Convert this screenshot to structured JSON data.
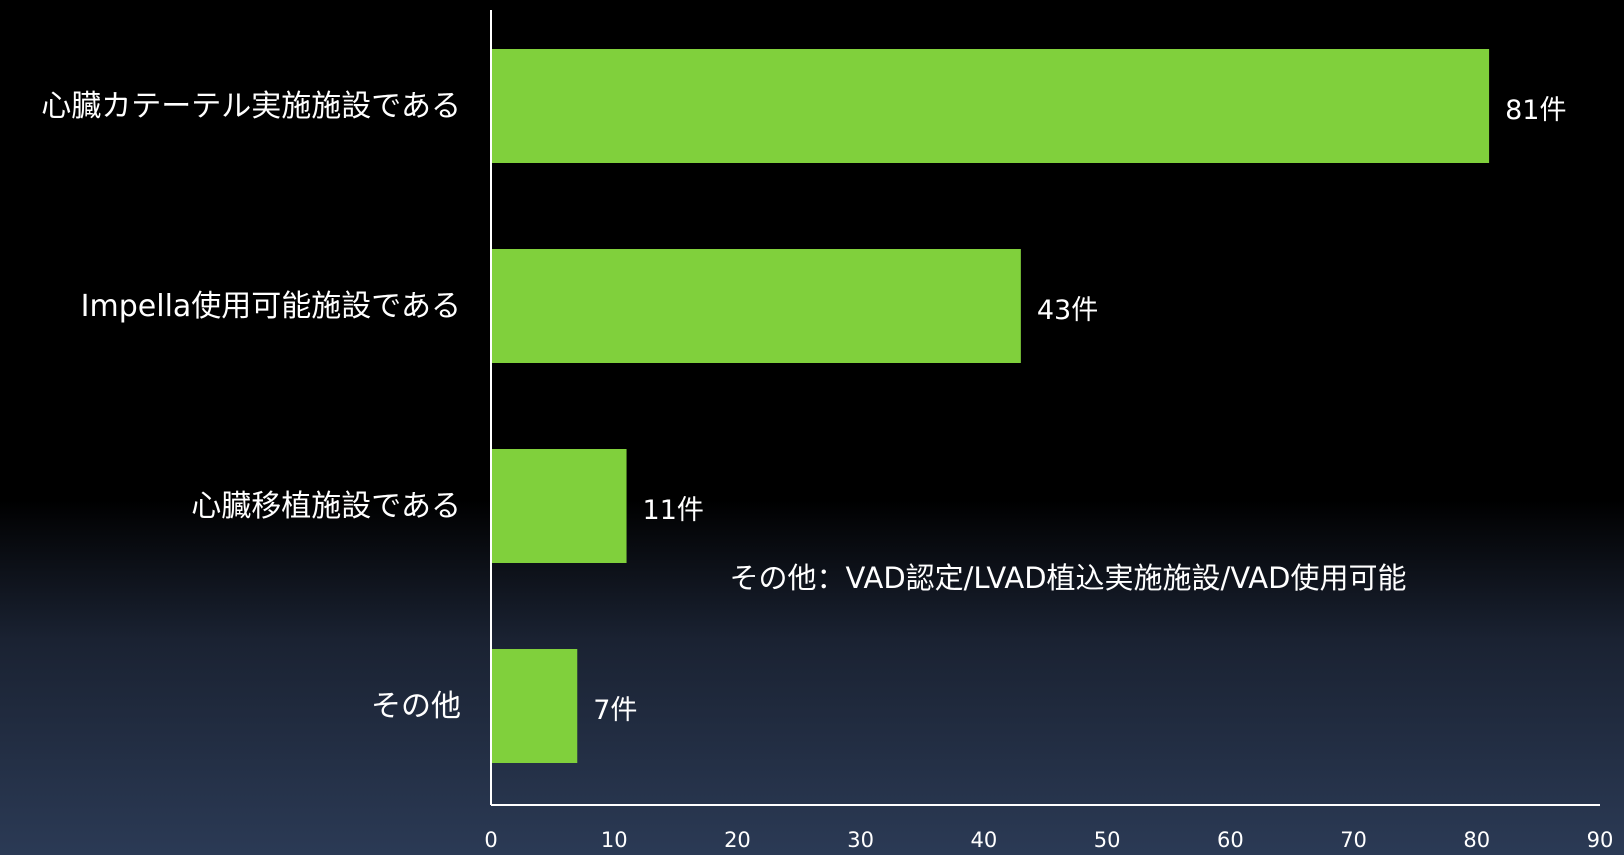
{
  "chart_data": {
    "type": "bar",
    "orientation": "horizontal",
    "categories": [
      "心臓カテーテル実施施設である",
      "Impella使用可能施設である",
      "心臓移植施設である",
      "その他"
    ],
    "values": [
      81,
      43,
      11,
      7
    ],
    "value_labels": [
      "81件",
      "43件",
      "11件",
      "7件"
    ],
    "xlim": [
      0,
      90
    ],
    "x_ticks": [
      0,
      10,
      20,
      30,
      40,
      50,
      60,
      70,
      80,
      90
    ],
    "title": "",
    "xlabel": "",
    "ylabel": "",
    "grid": false,
    "legend": "none",
    "annotation": "その他：VAD認定/LVAD植込実施施設/VAD使用可能",
    "colors": {
      "bar": "#80d03c",
      "text": "#ffffff",
      "axis": "#ffffff"
    }
  }
}
